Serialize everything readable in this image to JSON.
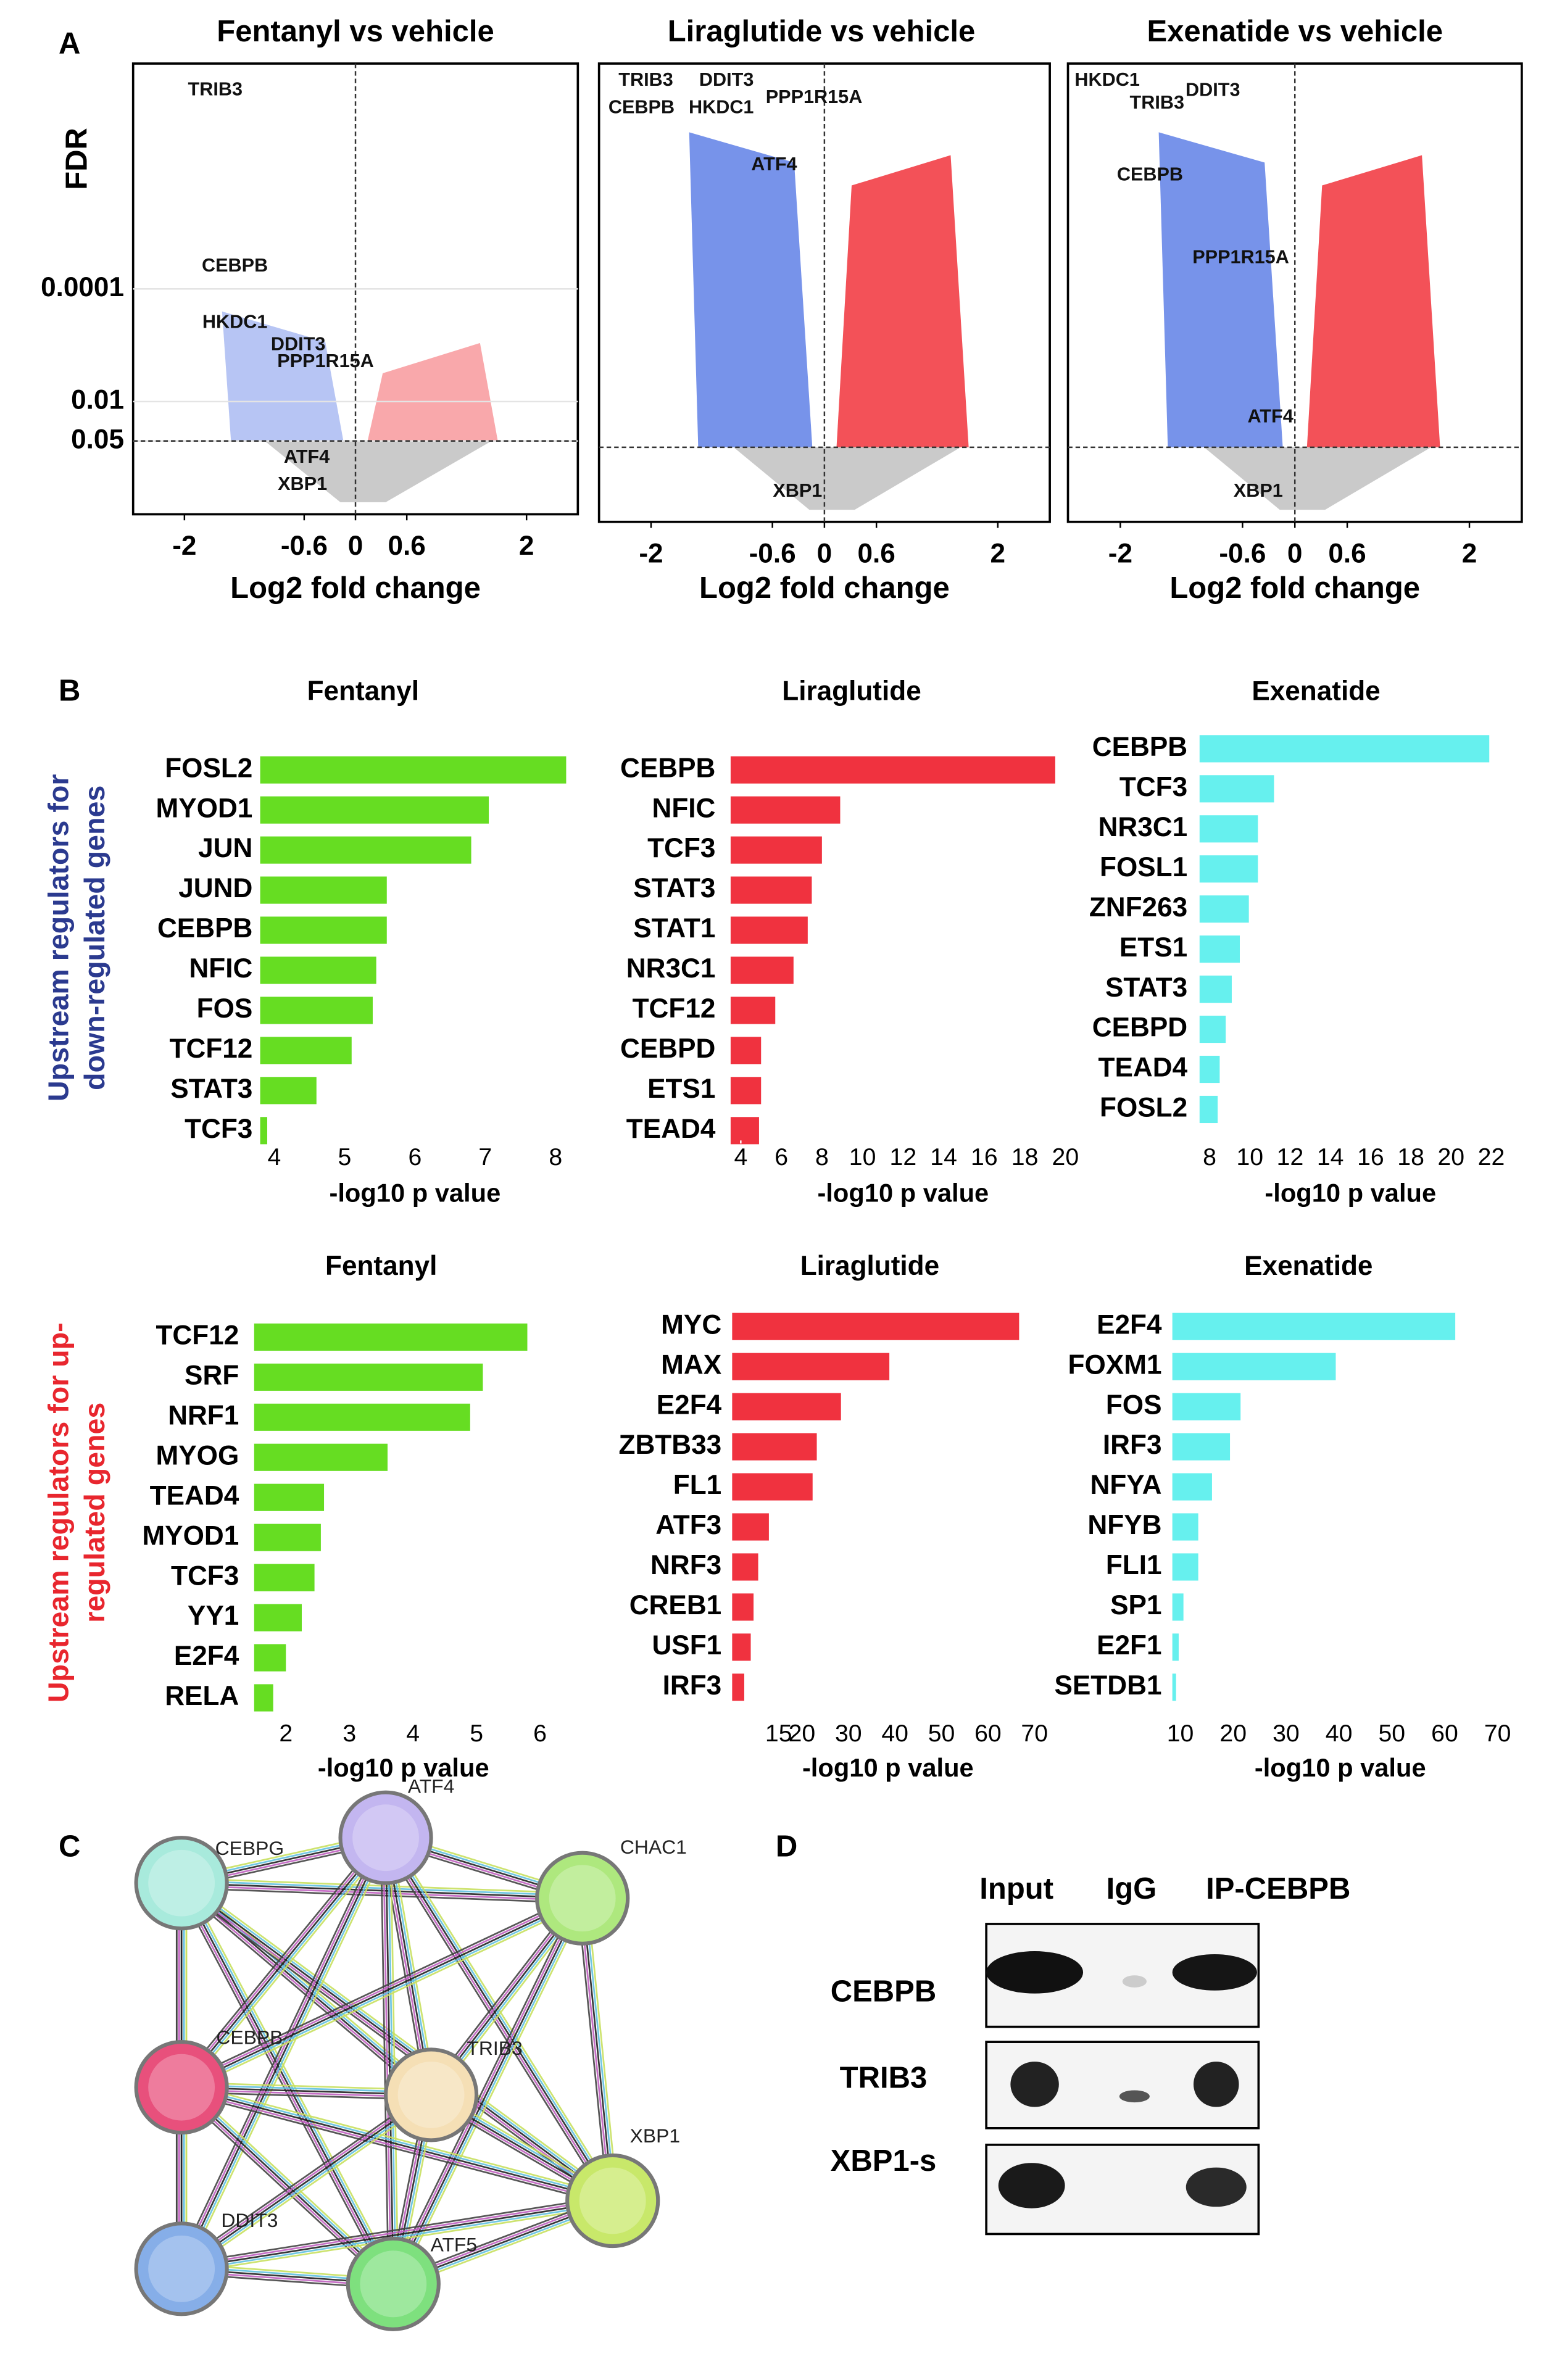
{
  "panel_labels": [
    "A",
    "B",
    "C",
    "D"
  ],
  "row_labels": [
    {
      "lines": [
        "Upstream regulators for",
        "down-regulated genes"
      ],
      "color": "#2b3a8f"
    },
    {
      "lines": [
        "Upstream regulators for up-",
        "regulated genes"
      ],
      "color": "#e8262e"
    }
  ],
  "chart_data": [
    {
      "type": "volcano",
      "title": "Fentanyl vs vehicle",
      "xlabel": "Log2 fold change",
      "ylabel": "FDR",
      "xlim": [
        -2.6,
        2.6
      ],
      "xticks": [
        -2,
        -0.6,
        0,
        0.6,
        2
      ],
      "ylim": [
        1,
        1e-08
      ],
      "ylog": true,
      "yticks": [
        0.0001,
        0.01,
        0.05
      ],
      "fdr_cutoff": 0.05,
      "colors": {
        "down": "#4a6fe3",
        "up": "#f0262e",
        "ns": "#bdbdbd"
      },
      "annotations": [
        {
          "text": "TRIB3",
          "x": -1.64,
          "y": 3e-08
        },
        {
          "text": "CEBPB",
          "x": -1.41,
          "y": 4e-05
        },
        {
          "text": "HKDC1",
          "x": -1.41,
          "y": 0.0004
        },
        {
          "text": "DDIT3",
          "x": -0.67,
          "y": 0.001
        },
        {
          "text": "PPP1R15A",
          "x": -0.35,
          "y": 0.002
        },
        {
          "text": "ATF4",
          "x": -0.57,
          "y": 0.1
        },
        {
          "text": "XBP1",
          "x": -0.62,
          "y": 0.3
        }
      ]
    },
    {
      "type": "volcano",
      "title": "Liraglutide vs vehicle",
      "xlabel": "Log2 fold change",
      "xlim": [
        -2.6,
        2.6
      ],
      "xticks": [
        -2,
        -0.6,
        0,
        0.6,
        2
      ],
      "ylim": [
        1,
        1e-08
      ],
      "ylog": true,
      "fdr_cutoff": 0.05,
      "colors": {
        "down": "#4a6fe3",
        "up": "#f0262e",
        "ns": "#bdbdbd"
      },
      "annotations": [
        {
          "text": "TRIB3",
          "x": -2.06,
          "y": 2e-08
        },
        {
          "text": "DDIT3",
          "x": -1.13,
          "y": 2e-08
        },
        {
          "text": "CEBPB",
          "x": -2.11,
          "y": 6e-08
        },
        {
          "text": "HKDC1",
          "x": -1.19,
          "y": 6e-08
        },
        {
          "text": "PPP1R15A",
          "x": -0.12,
          "y": 4e-08
        },
        {
          "text": "ATF4",
          "x": -0.58,
          "y": 6e-07
        },
        {
          "text": "XBP1",
          "x": -0.31,
          "y": 0.3
        }
      ]
    },
    {
      "type": "volcano",
      "title": "Exenatide vs vehicle",
      "xlabel": "Log2 fold change",
      "xlim": [
        -2.6,
        2.6
      ],
      "xticks": [
        -2,
        -0.6,
        0,
        0.6,
        2
      ],
      "ylim": [
        1,
        1e-08
      ],
      "ylog": true,
      "fdr_cutoff": 0.05,
      "colors": {
        "down": "#4a6fe3",
        "up": "#f0262e",
        "ns": "#bdbdbd"
      },
      "annotations": [
        {
          "text": "HKDC1",
          "x": -2.15,
          "y": 2e-08
        },
        {
          "text": "DDIT3",
          "x": -0.94,
          "y": 3e-08
        },
        {
          "text": "TRIB3",
          "x": -1.58,
          "y": 5e-08
        },
        {
          "text": "CEBPB",
          "x": -1.66,
          "y": 9e-07
        },
        {
          "text": "PPP1R15A",
          "x": -0.62,
          "y": 2.5e-05
        },
        {
          "text": "ATF4",
          "x": -0.28,
          "y": 0.015
        },
        {
          "text": "XBP1",
          "x": -0.42,
          "y": 0.3
        }
      ]
    },
    {
      "type": "hbar",
      "title": "Fentanyl",
      "xlabel": "-log10 p value",
      "color": "#66dd22",
      "categories": [
        "FOSL2",
        "MYOD1",
        "JUN",
        "JUND",
        "CEBPB",
        "NFIC",
        "FOS",
        "TCF12",
        "STAT3",
        "TCF3"
      ],
      "values": [
        8.15,
        7.05,
        6.8,
        5.6,
        5.6,
        5.45,
        5.4,
        5.1,
        4.6,
        3.9
      ],
      "xlim": [
        3.8,
        8.2
      ],
      "xticks": [
        4,
        5,
        6,
        7,
        8
      ]
    },
    {
      "type": "hbar",
      "title": "Liraglutide",
      "xlabel": "-log10 p value",
      "color": "#f0323f",
      "categories": [
        "CEBPB",
        "NFIC",
        "TCF3",
        "STAT3",
        "STAT1",
        "NR3C1",
        "TCF12",
        "CEBPD",
        "ETS1",
        "TEAD4"
      ],
      "values": [
        19.5,
        8.9,
        8.0,
        7.5,
        7.3,
        6.6,
        5.7,
        5.0,
        5.0,
        4.9
      ],
      "xlim": [
        3.5,
        20.5
      ],
      "xticks": [
        4,
        6,
        8,
        10,
        12,
        14,
        16,
        18,
        20
      ]
    },
    {
      "type": "hbar",
      "title": "Exenatide",
      "xlabel": "-log10 p value",
      "color": "#66f0ee",
      "categories": [
        "CEBPB",
        "TCF3",
        "NR3C1",
        "FOSL1",
        "ZNF263",
        "ETS1",
        "STAT3",
        "CEBPD",
        "TEAD4",
        "FOSL2"
      ],
      "values": [
        21.9,
        11.2,
        10.4,
        10.4,
        9.95,
        9.5,
        9.1,
        8.8,
        8.5,
        8.4
      ],
      "xlim": [
        7.5,
        22.5
      ],
      "xticks": [
        8,
        10,
        12,
        14,
        16,
        18,
        20,
        22
      ]
    },
    {
      "type": "hbar",
      "title": "Fentanyl",
      "xlabel": "-log10 p value",
      "color": "#66dd22",
      "categories": [
        "TCF12",
        "SRF",
        "NRF1",
        "MYOG",
        "TEAD4",
        "MYOD1",
        "TCF3",
        "YY1",
        "E2F4",
        "RELA"
      ],
      "values": [
        5.8,
        5.1,
        4.9,
        3.6,
        2.6,
        2.55,
        2.45,
        2.25,
        2.0,
        1.8
      ],
      "xlim": [
        1.5,
        6.2
      ],
      "xticks": [
        2,
        3,
        4,
        5,
        6
      ]
    },
    {
      "type": "hbar",
      "title": "Liraglutide",
      "xlabel": "-log10 p value",
      "color": "#f0323f",
      "categories": [
        "MYC",
        "MAX",
        "E2F4",
        "ZBTB33",
        "FL1",
        "ATF3",
        "NRF3",
        "CREB1",
        "USF1",
        "IRF3"
      ],
      "values": [
        66.7,
        38.8,
        28.4,
        23.2,
        22.3,
        12.9,
        10.6,
        9.6,
        9,
        7.6
      ],
      "xlim": [
        5,
        72
      ],
      "xticks": [
        15,
        20,
        30,
        40,
        50,
        60,
        70
      ]
    },
    {
      "type": "hbar",
      "title": "Exenatide",
      "xlabel": "-log10 p value",
      "color": "#66f0ee",
      "categories": [
        "E2F4",
        "FOXM1",
        "FOS",
        "IRF3",
        "NFYA",
        "NFYB",
        "FLI1",
        "SP1",
        "E2F1",
        "SETDB1"
      ],
      "values": [
        62,
        39.4,
        21.4,
        19.4,
        16,
        13.4,
        13.4,
        10.6,
        9.7,
        9.2
      ],
      "xlim": [
        8.5,
        72
      ],
      "xticks": [
        10,
        20,
        30,
        40,
        50,
        60,
        70
      ]
    }
  ],
  "network": {
    "nodes": [
      {
        "label": "CEBPG",
        "color": "#a8eadc"
      },
      {
        "label": "ATF4",
        "color": "#c3b6f0"
      },
      {
        "label": "CHAC1",
        "color": "#aee87e"
      },
      {
        "label": "CEBPB",
        "color": "#e8507c"
      },
      {
        "label": "TRIB3",
        "color": "#f5dfb5"
      },
      {
        "label": "XBP1",
        "color": "#c8e86a"
      },
      {
        "label": "DDIT3",
        "color": "#86aee8"
      },
      {
        "label": "ATF5",
        "color": "#7ee07e"
      }
    ]
  },
  "western_blot": {
    "lanes": [
      "Input",
      "IgG",
      "IP-CEBPB"
    ],
    "rows": [
      "CEBPB",
      "TRIB3",
      "XBP1-s"
    ]
  }
}
